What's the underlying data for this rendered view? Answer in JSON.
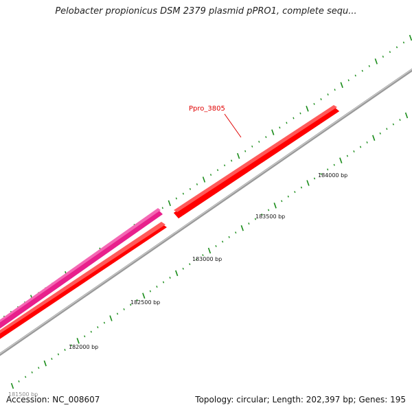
{
  "title": "Pelobacter propionicus DSM 2379 plasmid pPRO1, complete sequ...",
  "footer": {
    "accession": "Accession: NC_008607",
    "summary": "Topology: circular; Length: 202,397 bp; Genes: 195"
  },
  "map": {
    "visible_range_bp": [
      181500,
      184300
    ],
    "position_labels": [
      "181500 bp",
      "182000 bp",
      "182500 bp",
      "183000 bp",
      "183500 bp",
      "184000 bp"
    ],
    "genes": [
      {
        "name": "Ppro_3805",
        "color": "#ff0000",
        "strand": "forward",
        "labeled": true
      },
      {
        "name": "",
        "color": "#ff0000",
        "strand": "forward",
        "labeled": false
      },
      {
        "name": "",
        "color": "#e8208c",
        "strand": "forward",
        "labeled": false
      }
    ],
    "colors": {
      "backbone": "#888888",
      "ticks": "#1a8c1a",
      "gene_red": "#ff0000",
      "gene_pink": "#e8208c"
    }
  }
}
